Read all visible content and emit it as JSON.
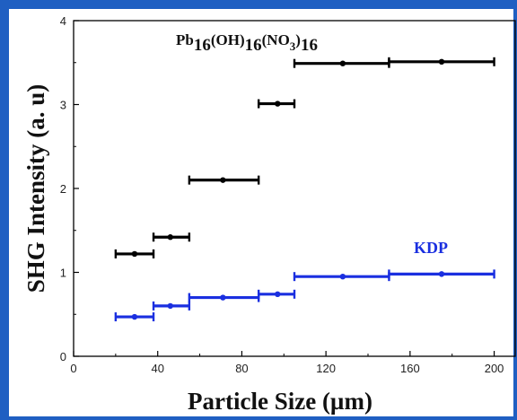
{
  "chart_data": {
    "type": "scatter",
    "title": "",
    "xlabel": "Particle Size (µm)",
    "ylabel": "SHG Intensity (a. u)",
    "xlim": [
      0,
      210
    ],
    "ylim": [
      0,
      4
    ],
    "x_ticks": [
      "0",
      "40",
      "80",
      "120",
      "160",
      "200"
    ],
    "y_ticks": [
      "0",
      "1",
      "2",
      "3",
      "4"
    ],
    "grid": false,
    "series": [
      {
        "name_parts": {
          "base": "Pb",
          "s1": "16",
          "g2": "(OH)",
          "s2": "16",
          "g3": "(NO",
          "s3": "3",
          "g4": ")",
          "s4": "16"
        },
        "color": "#000000",
        "points": [
          {
            "x_range": [
              20,
              38
            ],
            "x": 29,
            "y": 1.22
          },
          {
            "x_range": [
              38,
              55
            ],
            "x": 46,
            "y": 1.42
          },
          {
            "x_range": [
              55,
              88
            ],
            "x": 71,
            "y": 2.1
          },
          {
            "x_range": [
              88,
              105
            ],
            "x": 97,
            "y": 3.01
          },
          {
            "x_range": [
              105,
              150
            ],
            "x": 128,
            "y": 3.49
          },
          {
            "x_range": [
              150,
              200
            ],
            "x": 175,
            "y": 3.51
          }
        ]
      },
      {
        "name": "KDP",
        "color": "#1a2fe0",
        "points": [
          {
            "x_range": [
              20,
              38
            ],
            "x": 29,
            "y": 0.47
          },
          {
            "x_range": [
              38,
              55
            ],
            "x": 46,
            "y": 0.6
          },
          {
            "x_range": [
              55,
              88
            ],
            "x": 71,
            "y": 0.7
          },
          {
            "x_range": [
              88,
              105
            ],
            "x": 97,
            "y": 0.74
          },
          {
            "x_range": [
              105,
              150
            ],
            "x": 128,
            "y": 0.95
          },
          {
            "x_range": [
              150,
              200
            ],
            "x": 175,
            "y": 0.98
          }
        ]
      }
    ]
  }
}
